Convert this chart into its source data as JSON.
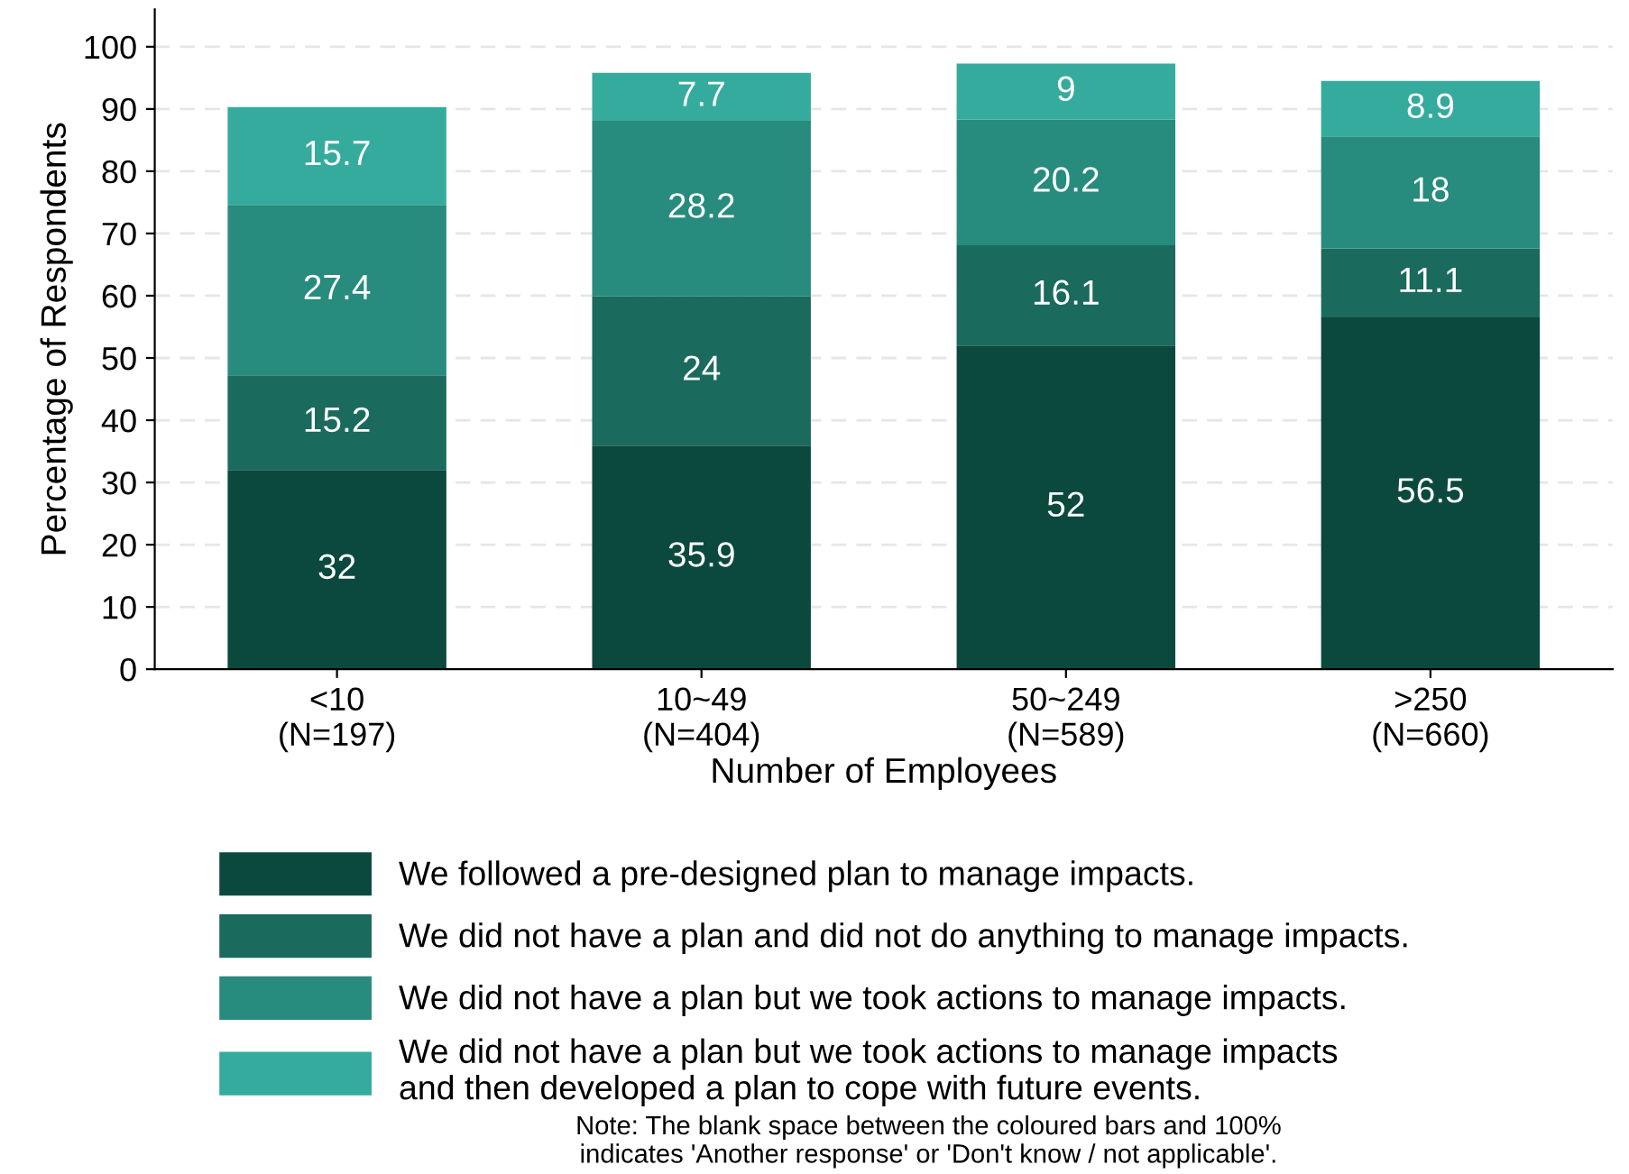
{
  "chart_data": {
    "type": "bar",
    "stacked": true,
    "xlabel": "Number of Employees",
    "ylabel": "Percentage of Respondents",
    "categories": [
      "<10\n(N=197)",
      "10~49\n(N=404)",
      "50~249\n(N=589)",
      ">250\n(N=660)"
    ],
    "series": [
      {
        "name": "We followed a pre-designed plan to manage impacts.",
        "color": "#0b483d",
        "values": [
          32,
          35.9,
          52,
          56.5
        ]
      },
      {
        "name": "We did not have a plan and did not do anything to manage impacts.",
        "color": "#1a6a5d",
        "values": [
          15.2,
          24,
          16.1,
          11.1
        ]
      },
      {
        "name": "We did not have a plan but we took actions to manage impacts.",
        "color": "#278b7d",
        "values": [
          27.4,
          28.2,
          20.2,
          18
        ]
      },
      {
        "name": "We did not have a plan but we took actions to manage impacts\nand then developed a plan to cope with future events.",
        "color": "#35ab9d",
        "values": [
          15.7,
          7.7,
          9,
          8.9
        ]
      }
    ],
    "ylim": [
      0,
      106
    ],
    "yticks": [
      0,
      10,
      20,
      30,
      40,
      50,
      60,
      70,
      80,
      90,
      100
    ],
    "grid": "y",
    "legend": "bottom",
    "data_labels": true,
    "annotations": [
      "Note: The blank space between the coloured bars and 100%\nindicates 'Another response' or 'Don't know / not applicable'."
    ]
  }
}
